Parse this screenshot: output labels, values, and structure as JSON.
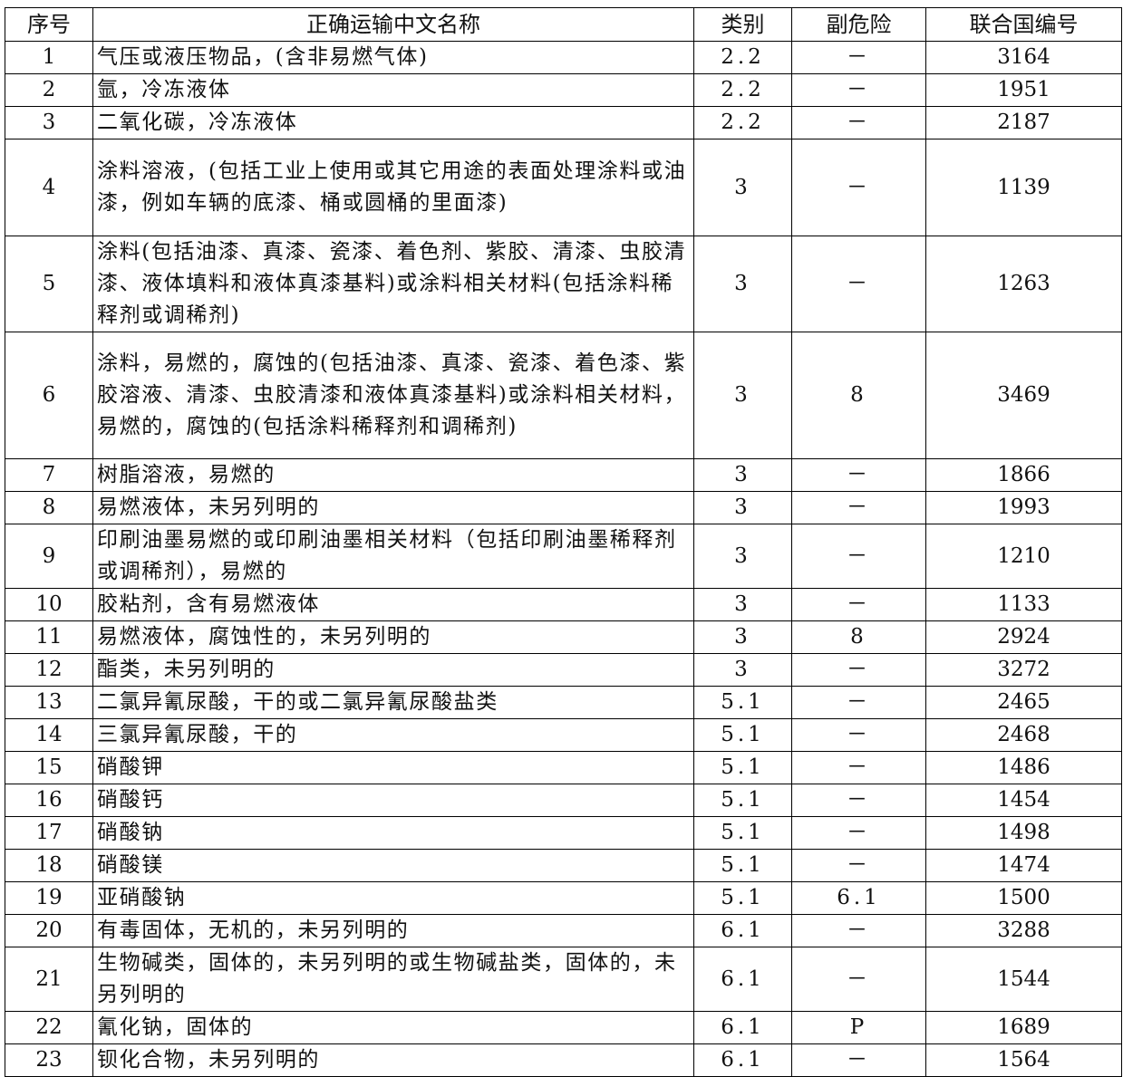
{
  "headers": [
    "序号",
    "正确运输中文名称",
    "类别",
    "副危险",
    "联合国编号"
  ],
  "rows": [
    {
      "no": "1",
      "name": "气压或液压物品，(含非易燃气体)",
      "class": "2.2",
      "sub": "－",
      "un": "3164"
    },
    {
      "no": "2",
      "name": "氩，冷冻液体",
      "class": "2.2",
      "sub": "－",
      "un": "1951"
    },
    {
      "no": "3",
      "name": "二氧化碳，冷冻液体",
      "class": "2.2",
      "sub": "－",
      "un": "2187"
    },
    {
      "no": "4",
      "name": "涂料溶液，(包括工业上使用或其它用途的表面处理涂料或油漆，例如车辆的底漆、桶或圆桶的里面漆)",
      "class": "3",
      "sub": "－",
      "un": "1139"
    },
    {
      "no": "5",
      "name": "涂料(包括油漆、真漆、瓷漆、着色剂、紫胶、清漆、虫胶清漆、液体填料和液体真漆基料)或涂料相关材料(包括涂料稀释剂或调稀剂)",
      "class": "3",
      "sub": "－",
      "un": "1263"
    },
    {
      "no": "6",
      "name": "涂料，易燃的，腐蚀的(包括油漆、真漆、瓷漆、着色漆、紫胶溶液、清漆、虫胶清漆和液体真漆基料)或涂料相关材料，易燃的，腐蚀的(包括涂料稀释剂和调稀剂)",
      "class": "3",
      "sub": "8",
      "un": "3469"
    },
    {
      "no": "7",
      "name": "树脂溶液，易燃的",
      "class": "3",
      "sub": "－",
      "un": "1866"
    },
    {
      "no": "8",
      "name": "易燃液体，未另列明的",
      "class": "3",
      "sub": "－",
      "un": "1993"
    },
    {
      "no": "9",
      "name": "印刷油墨易燃的或印刷油墨相关材料（包括印刷油墨稀释剂或调稀剂），易燃的",
      "class": "3",
      "sub": "－",
      "un": "1210"
    },
    {
      "no": "10",
      "name": "胶粘剂，含有易燃液体",
      "class": "3",
      "sub": "－",
      "un": "1133"
    },
    {
      "no": "11",
      "name": "易燃液体，腐蚀性的，未另列明的",
      "class": "3",
      "sub": "8",
      "un": "2924"
    },
    {
      "no": "12",
      "name": "酯类，未另列明的",
      "class": "3",
      "sub": "－",
      "un": "3272"
    },
    {
      "no": "13",
      "name": "二氯异氰尿酸，干的或二氯异氰尿酸盐类",
      "class": "5.1",
      "sub": "－",
      "un": "2465"
    },
    {
      "no": "14",
      "name": "三氯异氰尿酸，干的",
      "class": "5.1",
      "sub": "－",
      "un": "2468"
    },
    {
      "no": "15",
      "name": "硝酸钾",
      "class": "5.1",
      "sub": "－",
      "un": "1486"
    },
    {
      "no": "16",
      "name": "硝酸钙",
      "class": "5.1",
      "sub": "－",
      "un": "1454"
    },
    {
      "no": "17",
      "name": "硝酸钠",
      "class": "5.1",
      "sub": "－",
      "un": "1498"
    },
    {
      "no": "18",
      "name": "硝酸镁",
      "class": "5.1",
      "sub": "－",
      "un": "1474"
    },
    {
      "no": "19",
      "name": "亚硝酸钠",
      "class": "5.1",
      "sub": "6.1",
      "un": "1500"
    },
    {
      "no": "20",
      "name": "有毒固体，无机的，未另列明的",
      "class": "6.1",
      "sub": "－",
      "un": "3288"
    },
    {
      "no": "21",
      "name": "生物碱类，固体的，未另列明的或生物碱盐类，固体的，未另列明的",
      "class": "6.1",
      "sub": "－",
      "un": "1544"
    },
    {
      "no": "22",
      "name": "氰化钠，固体的",
      "class": "6.1",
      "sub": "P",
      "un": "1689"
    },
    {
      "no": "23",
      "name": "钡化合物，未另列明的",
      "class": "6.1",
      "sub": "－",
      "un": "1564"
    }
  ]
}
